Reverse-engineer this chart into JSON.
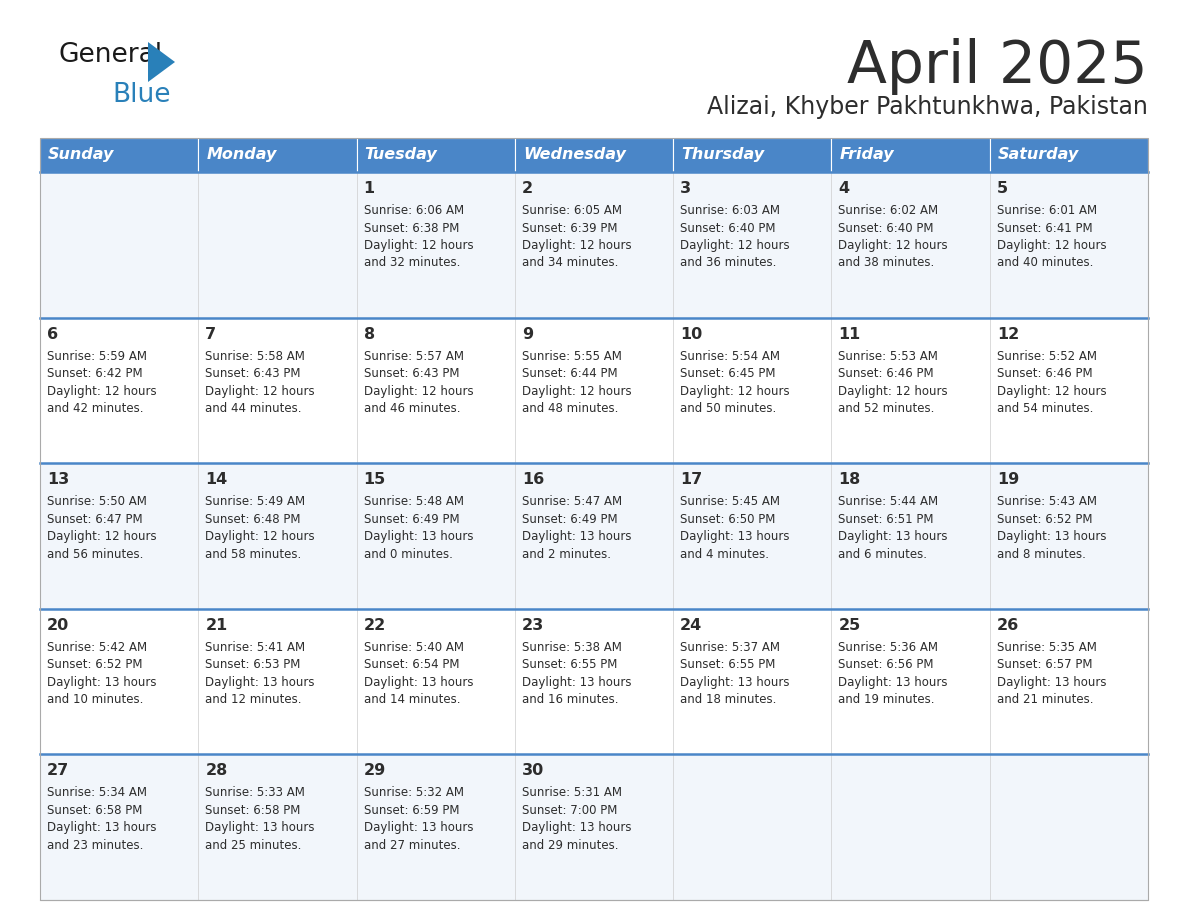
{
  "title": "April 2025",
  "subtitle": "Alizai, Khyber Pakhtunkhwa, Pakistan",
  "header_bg_color": "#4a86c8",
  "header_text_color": "#ffffff",
  "cell_bg_even": "#f2f6fb",
  "cell_bg_odd": "#ffffff",
  "divider_color": "#4a86c8",
  "text_color": "#333333",
  "days_of_week": [
    "Sunday",
    "Monday",
    "Tuesday",
    "Wednesday",
    "Thursday",
    "Friday",
    "Saturday"
  ],
  "weeks": [
    [
      {
        "day": "",
        "sunrise": "",
        "sunset": "",
        "daylight": ""
      },
      {
        "day": "",
        "sunrise": "",
        "sunset": "",
        "daylight": ""
      },
      {
        "day": "1",
        "sunrise": "Sunrise: 6:06 AM",
        "sunset": "Sunset: 6:38 PM",
        "daylight": "Daylight: 12 hours\nand 32 minutes."
      },
      {
        "day": "2",
        "sunrise": "Sunrise: 6:05 AM",
        "sunset": "Sunset: 6:39 PM",
        "daylight": "Daylight: 12 hours\nand 34 minutes."
      },
      {
        "day": "3",
        "sunrise": "Sunrise: 6:03 AM",
        "sunset": "Sunset: 6:40 PM",
        "daylight": "Daylight: 12 hours\nand 36 minutes."
      },
      {
        "day": "4",
        "sunrise": "Sunrise: 6:02 AM",
        "sunset": "Sunset: 6:40 PM",
        "daylight": "Daylight: 12 hours\nand 38 minutes."
      },
      {
        "day": "5",
        "sunrise": "Sunrise: 6:01 AM",
        "sunset": "Sunset: 6:41 PM",
        "daylight": "Daylight: 12 hours\nand 40 minutes."
      }
    ],
    [
      {
        "day": "6",
        "sunrise": "Sunrise: 5:59 AM",
        "sunset": "Sunset: 6:42 PM",
        "daylight": "Daylight: 12 hours\nand 42 minutes."
      },
      {
        "day": "7",
        "sunrise": "Sunrise: 5:58 AM",
        "sunset": "Sunset: 6:43 PM",
        "daylight": "Daylight: 12 hours\nand 44 minutes."
      },
      {
        "day": "8",
        "sunrise": "Sunrise: 5:57 AM",
        "sunset": "Sunset: 6:43 PM",
        "daylight": "Daylight: 12 hours\nand 46 minutes."
      },
      {
        "day": "9",
        "sunrise": "Sunrise: 5:55 AM",
        "sunset": "Sunset: 6:44 PM",
        "daylight": "Daylight: 12 hours\nand 48 minutes."
      },
      {
        "day": "10",
        "sunrise": "Sunrise: 5:54 AM",
        "sunset": "Sunset: 6:45 PM",
        "daylight": "Daylight: 12 hours\nand 50 minutes."
      },
      {
        "day": "11",
        "sunrise": "Sunrise: 5:53 AM",
        "sunset": "Sunset: 6:46 PM",
        "daylight": "Daylight: 12 hours\nand 52 minutes."
      },
      {
        "day": "12",
        "sunrise": "Sunrise: 5:52 AM",
        "sunset": "Sunset: 6:46 PM",
        "daylight": "Daylight: 12 hours\nand 54 minutes."
      }
    ],
    [
      {
        "day": "13",
        "sunrise": "Sunrise: 5:50 AM",
        "sunset": "Sunset: 6:47 PM",
        "daylight": "Daylight: 12 hours\nand 56 minutes."
      },
      {
        "day": "14",
        "sunrise": "Sunrise: 5:49 AM",
        "sunset": "Sunset: 6:48 PM",
        "daylight": "Daylight: 12 hours\nand 58 minutes."
      },
      {
        "day": "15",
        "sunrise": "Sunrise: 5:48 AM",
        "sunset": "Sunset: 6:49 PM",
        "daylight": "Daylight: 13 hours\nand 0 minutes."
      },
      {
        "day": "16",
        "sunrise": "Sunrise: 5:47 AM",
        "sunset": "Sunset: 6:49 PM",
        "daylight": "Daylight: 13 hours\nand 2 minutes."
      },
      {
        "day": "17",
        "sunrise": "Sunrise: 5:45 AM",
        "sunset": "Sunset: 6:50 PM",
        "daylight": "Daylight: 13 hours\nand 4 minutes."
      },
      {
        "day": "18",
        "sunrise": "Sunrise: 5:44 AM",
        "sunset": "Sunset: 6:51 PM",
        "daylight": "Daylight: 13 hours\nand 6 minutes."
      },
      {
        "day": "19",
        "sunrise": "Sunrise: 5:43 AM",
        "sunset": "Sunset: 6:52 PM",
        "daylight": "Daylight: 13 hours\nand 8 minutes."
      }
    ],
    [
      {
        "day": "20",
        "sunrise": "Sunrise: 5:42 AM",
        "sunset": "Sunset: 6:52 PM",
        "daylight": "Daylight: 13 hours\nand 10 minutes."
      },
      {
        "day": "21",
        "sunrise": "Sunrise: 5:41 AM",
        "sunset": "Sunset: 6:53 PM",
        "daylight": "Daylight: 13 hours\nand 12 minutes."
      },
      {
        "day": "22",
        "sunrise": "Sunrise: 5:40 AM",
        "sunset": "Sunset: 6:54 PM",
        "daylight": "Daylight: 13 hours\nand 14 minutes."
      },
      {
        "day": "23",
        "sunrise": "Sunrise: 5:38 AM",
        "sunset": "Sunset: 6:55 PM",
        "daylight": "Daylight: 13 hours\nand 16 minutes."
      },
      {
        "day": "24",
        "sunrise": "Sunrise: 5:37 AM",
        "sunset": "Sunset: 6:55 PM",
        "daylight": "Daylight: 13 hours\nand 18 minutes."
      },
      {
        "day": "25",
        "sunrise": "Sunrise: 5:36 AM",
        "sunset": "Sunset: 6:56 PM",
        "daylight": "Daylight: 13 hours\nand 19 minutes."
      },
      {
        "day": "26",
        "sunrise": "Sunrise: 5:35 AM",
        "sunset": "Sunset: 6:57 PM",
        "daylight": "Daylight: 13 hours\nand 21 minutes."
      }
    ],
    [
      {
        "day": "27",
        "sunrise": "Sunrise: 5:34 AM",
        "sunset": "Sunset: 6:58 PM",
        "daylight": "Daylight: 13 hours\nand 23 minutes."
      },
      {
        "day": "28",
        "sunrise": "Sunrise: 5:33 AM",
        "sunset": "Sunset: 6:58 PM",
        "daylight": "Daylight: 13 hours\nand 25 minutes."
      },
      {
        "day": "29",
        "sunrise": "Sunrise: 5:32 AM",
        "sunset": "Sunset: 6:59 PM",
        "daylight": "Daylight: 13 hours\nand 27 minutes."
      },
      {
        "day": "30",
        "sunrise": "Sunrise: 5:31 AM",
        "sunset": "Sunset: 7:00 PM",
        "daylight": "Daylight: 13 hours\nand 29 minutes."
      },
      {
        "day": "",
        "sunrise": "",
        "sunset": "",
        "daylight": ""
      },
      {
        "day": "",
        "sunrise": "",
        "sunset": "",
        "daylight": ""
      },
      {
        "day": "",
        "sunrise": "",
        "sunset": "",
        "daylight": ""
      }
    ]
  ]
}
